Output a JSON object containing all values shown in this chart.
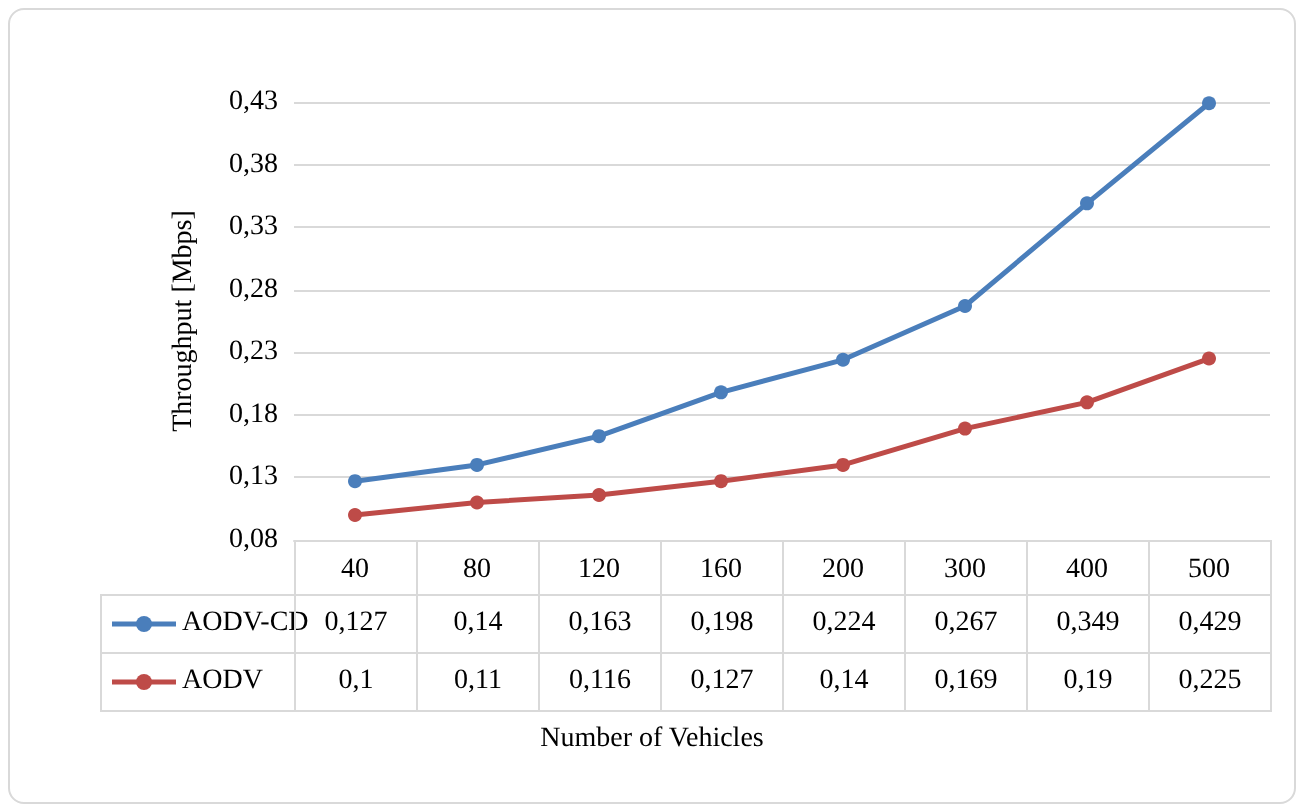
{
  "chart_data": {
    "type": "line",
    "xlabel": "Number of Vehicles",
    "ylabel": "Throughput [Mbps]",
    "categories": [
      "40",
      "80",
      "120",
      "160",
      "200",
      "300",
      "400",
      "500"
    ],
    "series": [
      {
        "name": "AODV-CD",
        "color": "#4a7ebb",
        "values": [
          0.127,
          0.14,
          0.163,
          0.198,
          0.224,
          0.267,
          0.349,
          0.429
        ],
        "value_labels": [
          "0,127",
          "0,14",
          "0,163",
          "0,198",
          "0,224",
          "0,267",
          "0,349",
          "0,429"
        ]
      },
      {
        "name": "AODV",
        "color": "#be4b48",
        "values": [
          0.1,
          0.11,
          0.116,
          0.127,
          0.14,
          0.169,
          0.19,
          0.225
        ],
        "value_labels": [
          "0,1",
          "0,11",
          "0,116",
          "0,127",
          "0,14",
          "0,169",
          "0,19",
          "0,225"
        ]
      }
    ],
    "ylim": [
      0.08,
      0.43
    ],
    "yticks": [
      {
        "value": 0.08,
        "label": "0,08"
      },
      {
        "value": 0.13,
        "label": "0,13"
      },
      {
        "value": 0.18,
        "label": "0,18"
      },
      {
        "value": 0.23,
        "label": "0,23"
      },
      {
        "value": 0.28,
        "label": "0,28"
      },
      {
        "value": 0.33,
        "label": "0,33"
      },
      {
        "value": 0.38,
        "label": "0,38"
      },
      {
        "value": 0.43,
        "label": "0,43"
      }
    ],
    "grid": "y",
    "legend": "bottom",
    "marker": "circle",
    "line_style": "solid"
  }
}
